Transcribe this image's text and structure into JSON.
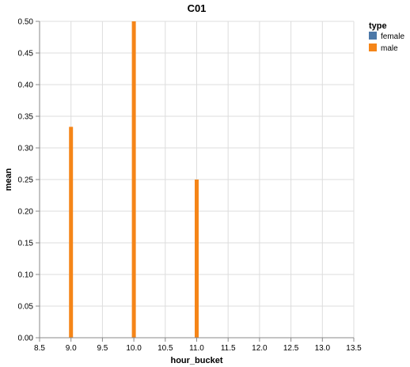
{
  "chart_data": {
    "type": "bar",
    "title": "C01",
    "xlabel": "hour_bucket",
    "ylabel": "mean",
    "xlim": [
      8.5,
      13.5
    ],
    "ylim": [
      0,
      0.5
    ],
    "x_ticks": [
      "8.5",
      "9.0",
      "9.5",
      "10.0",
      "10.5",
      "11.0",
      "11.5",
      "12.0",
      "12.5",
      "13.0",
      "13.5"
    ],
    "y_ticks": [
      "0.00",
      "0.05",
      "0.10",
      "0.15",
      "0.20",
      "0.25",
      "0.30",
      "0.35",
      "0.40",
      "0.45",
      "0.50"
    ],
    "grid": true,
    "legend": {
      "title": "type",
      "placement": "right",
      "entries": [
        {
          "name": "female",
          "color": "#4c78a8"
        },
        {
          "name": "male",
          "color": "#f58518"
        }
      ]
    },
    "series": [
      {
        "name": "female",
        "color": "#4c78a8",
        "points": []
      },
      {
        "name": "male",
        "color": "#f58518",
        "points": [
          {
            "x": 9.0,
            "y": 0.3333
          },
          {
            "x": 10.0,
            "y": 0.5
          },
          {
            "x": 11.0,
            "y": 0.25
          }
        ]
      }
    ]
  }
}
